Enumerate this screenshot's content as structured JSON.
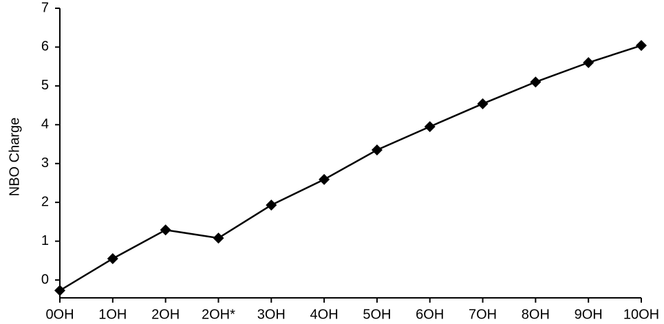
{
  "chart_data": {
    "type": "line",
    "y_label": "NBO Charge",
    "categories": [
      "0OH",
      "1OH",
      "2OH",
      "2OH*",
      "3OH",
      "4OH",
      "5OH",
      "6OH",
      "7OH",
      "8OH",
      "9OH",
      "10OH"
    ],
    "values": [
      -0.27,
      0.55,
      1.29,
      1.08,
      1.93,
      2.59,
      3.35,
      3.95,
      4.54,
      5.1,
      5.6,
      6.04
    ],
    "color": "#000000",
    "ylim": [
      -0.46,
      7
    ],
    "yticks": [
      0,
      1,
      2,
      3,
      4,
      5,
      6,
      7
    ],
    "grid": false
  }
}
